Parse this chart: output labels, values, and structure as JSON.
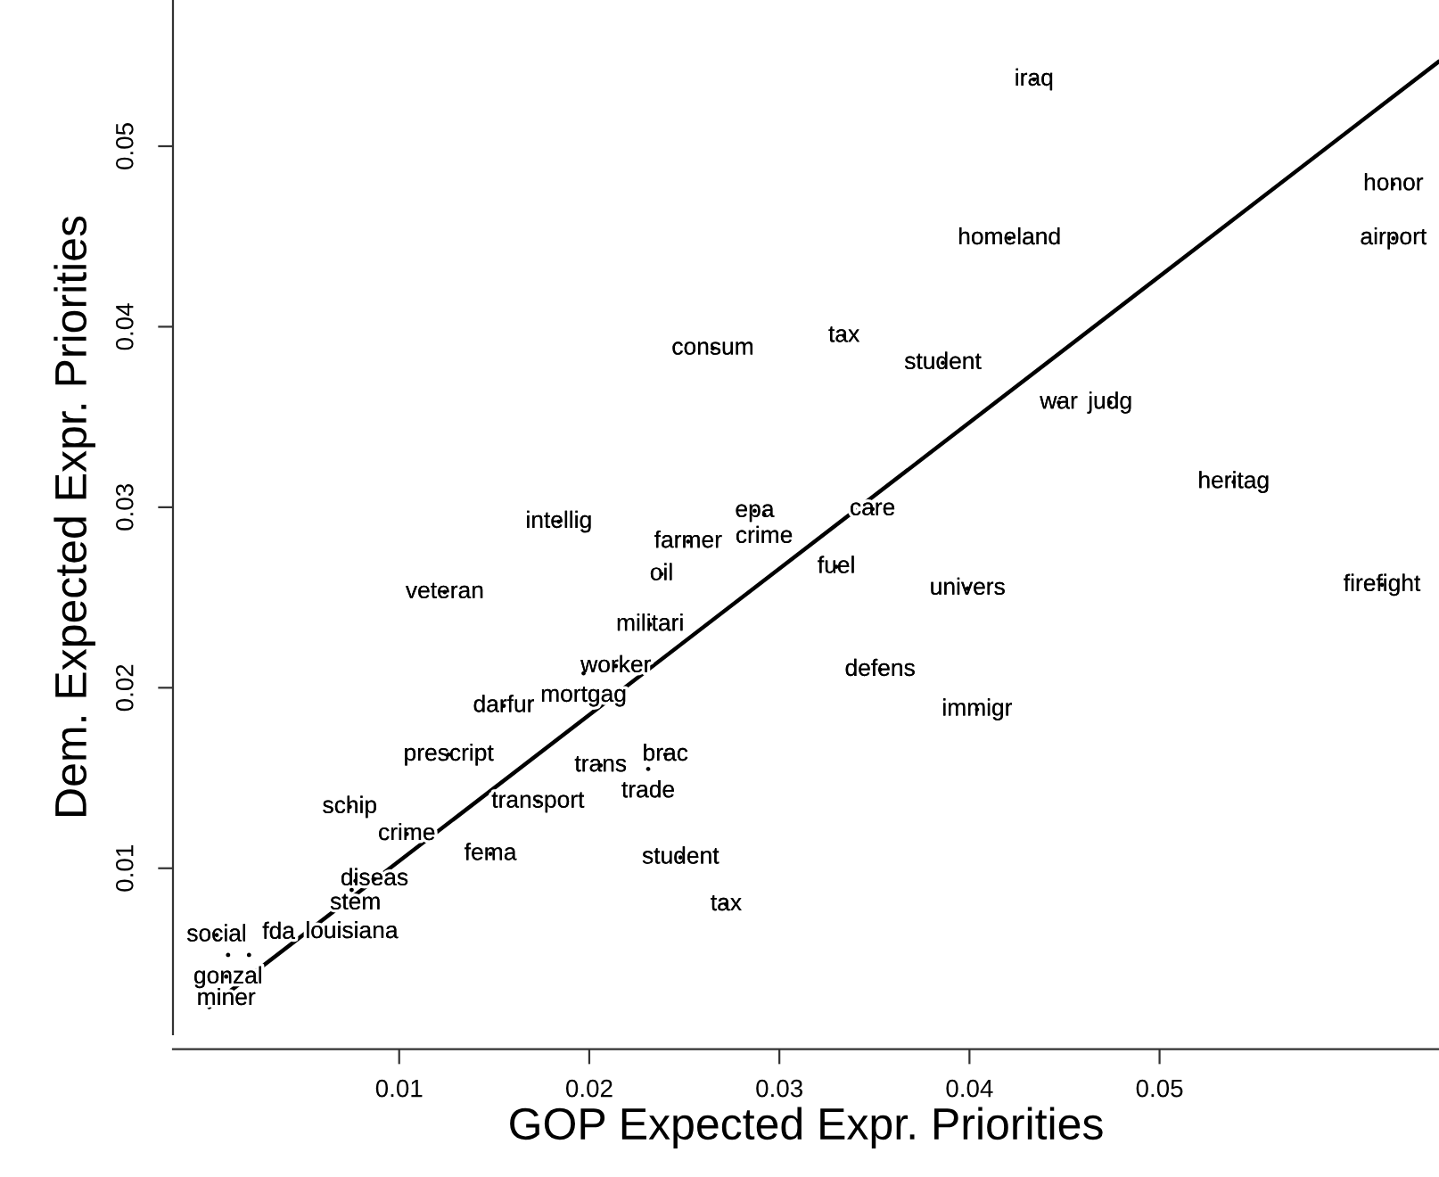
{
  "chart_data": {
    "type": "scatter",
    "xlabel": "GOP Expected Expr. Priorities",
    "ylabel": "Dem. Expected Expr. Priorities",
    "xlim": [
      -0.0019,
      0.0647
    ],
    "ylim": [
      0.0008,
      0.0581
    ],
    "xticks": [
      0.01,
      0.02,
      0.03,
      0.04,
      0.05
    ],
    "yticks": [
      0.01,
      0.02,
      0.03,
      0.04,
      0.05
    ],
    "grid": false,
    "marker": "none",
    "series": [
      {
        "type": "line",
        "color": "#000000",
        "x": [
          0.0,
          0.0647
        ],
        "values": [
          0.0023,
          0.0547
        ]
      },
      {
        "color": "#000000",
        "x": [
          0.0434,
          0.0623,
          0.0623,
          0.0421,
          0.0334,
          0.0265,
          0.0386,
          0.0447,
          0.0474,
          0.0539,
          0.0399,
          0.0617,
          0.0404,
          0.0184,
          0.0252,
          0.0238,
          0.0287,
          0.0292,
          0.0349,
          0.033,
          0.0232,
          0.0214,
          0.0197,
          0.0353,
          0.0124,
          0.0155,
          0.0126,
          0.0206,
          0.0231,
          0.024,
          0.0173,
          0.0074,
          0.0104,
          0.0148,
          0.0248,
          0.0272,
          0.0087,
          0.0077,
          0.0075,
          0.0004,
          0.001,
          0.0021,
          0.0009
        ],
        "values": [
          0.0537,
          0.0479,
          0.0449,
          0.0449,
          0.0395,
          0.0388,
          0.038,
          0.0358,
          0.0358,
          0.0314,
          0.0255,
          0.0257,
          0.0188,
          0.0292,
          0.0281,
          0.0263,
          0.0298,
          0.0296,
          0.0299,
          0.0267,
          0.0235,
          0.0212,
          0.0208,
          0.021,
          0.0253,
          0.019,
          0.0163,
          0.0157,
          0.0155,
          0.0163,
          0.0137,
          0.0134,
          0.0119,
          0.0108,
          0.0106,
          0.008,
          0.0094,
          0.0093,
          0.0088,
          0.0063,
          0.0052,
          0.0052,
          0.004
        ],
        "value_labels": [
          "iraq",
          "honor",
          "airport",
          "homeland",
          "tax",
          "consum",
          "student",
          "war",
          "judg",
          "heritag",
          "univers",
          "firefight",
          "immigr",
          "intellig",
          "farmer",
          "oil",
          "epa",
          "crime",
          "care",
          "fuel",
          "militari",
          "worker",
          "mortgag",
          "defens",
          "veteran",
          "darfur",
          "prescript",
          "trans",
          "trade",
          "brac",
          "transport",
          "schip",
          "crime",
          "fema",
          "student",
          "tax",
          "diseas",
          "stem",
          "louisiana",
          "social",
          "gonzal",
          "fda",
          "miner"
        ]
      }
    ]
  }
}
